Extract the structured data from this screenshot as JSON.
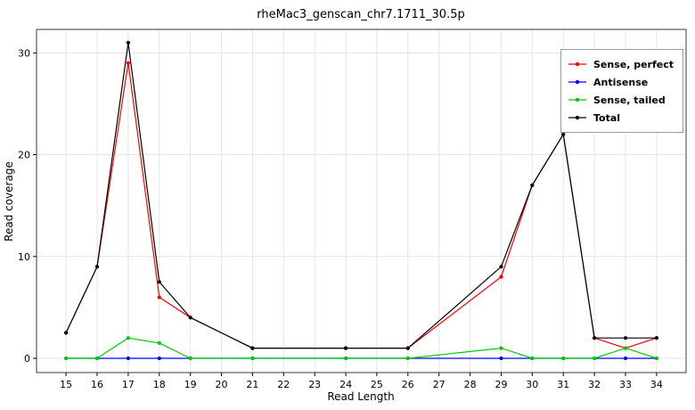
{
  "chart_data": {
    "type": "line",
    "title": "rheMac3_genscan_chr7.1711_30.5p",
    "xlabel": "Read Length",
    "ylabel": "Read coverage",
    "x_ticks": [
      15,
      16,
      17,
      18,
      19,
      20,
      21,
      22,
      23,
      24,
      25,
      26,
      27,
      28,
      29,
      30,
      31,
      32,
      33,
      34
    ],
    "y_ticks": [
      0,
      10,
      20,
      30
    ],
    "xlim": [
      14.05,
      34.95
    ],
    "ylim": [
      -1.4,
      32.3
    ],
    "grid": true,
    "legend_position": "top-right-inside",
    "background": "#ffffff",
    "gridline_color": "#e4e4e4",
    "panel_border_color": "#383838",
    "x": [
      15,
      16,
      17,
      18,
      19,
      21,
      24,
      26,
      29,
      30,
      31,
      32,
      33,
      34
    ],
    "series": [
      {
        "name": "Sense, perfect",
        "color": "#ff0000",
        "values": [
          2.5,
          9,
          29,
          6,
          4,
          1,
          1,
          1,
          8,
          17,
          22,
          2,
          1,
          2
        ]
      },
      {
        "name": "Antisense",
        "color": "#0000ff",
        "values": [
          0,
          0,
          0,
          0,
          0,
          0,
          0,
          0,
          0,
          0,
          0,
          0,
          0,
          0
        ]
      },
      {
        "name": "Sense, tailed",
        "color": "#00cc00",
        "values": [
          0,
          0,
          2,
          1.5,
          0,
          0,
          0,
          0,
          1,
          0,
          0,
          0,
          1,
          0
        ]
      },
      {
        "name": "Total",
        "color": "#000000",
        "values": [
          2.5,
          9,
          31,
          7.5,
          4,
          1,
          1,
          1,
          9,
          17,
          22,
          2,
          2,
          2
        ]
      }
    ]
  }
}
